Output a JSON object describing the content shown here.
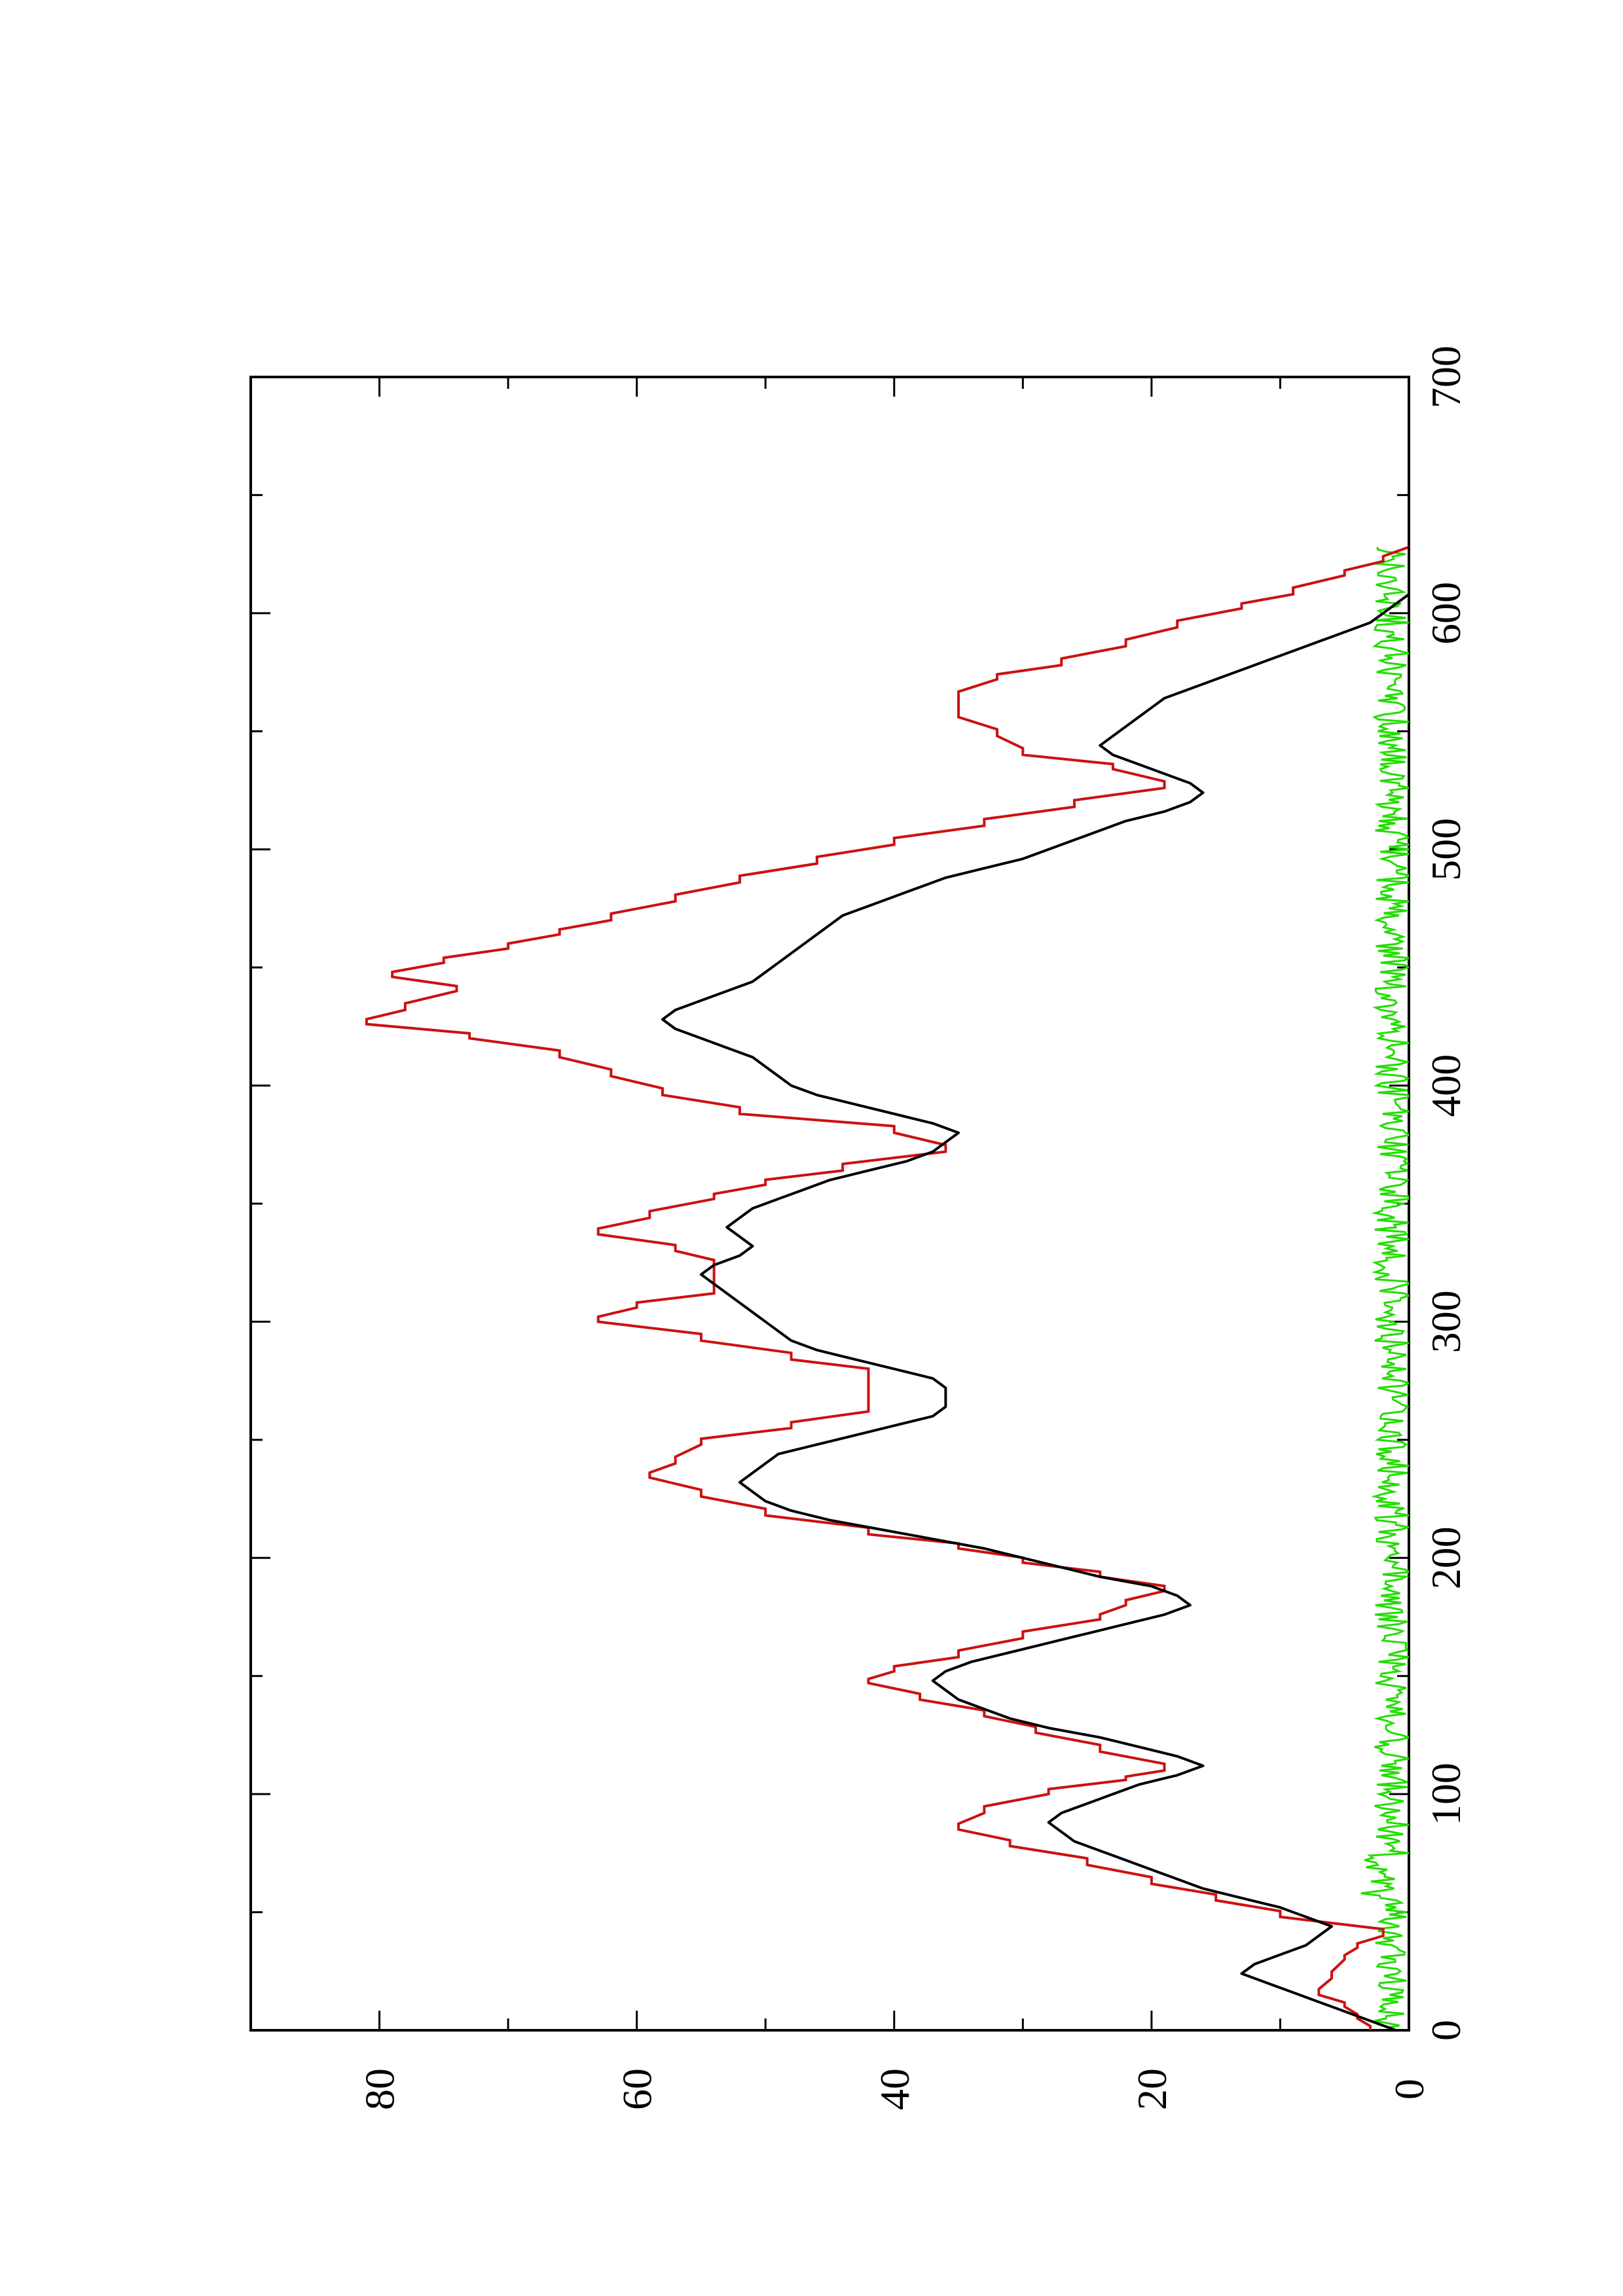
{
  "chart_data": {
    "type": "line",
    "title": "",
    "xlabel": "",
    "ylabel": "",
    "orientation": "rotated-90-counterclockwise",
    "xlim": [
      0,
      700
    ],
    "ylim": [
      0,
      90
    ],
    "x_ticks": [
      0,
      100,
      200,
      300,
      400,
      500,
      600,
      700
    ],
    "x_tick_labels": [
      "0",
      "100",
      "200",
      "300",
      "400",
      "500",
      "600",
      "700"
    ],
    "y_ticks": [
      0,
      20,
      40,
      60,
      80
    ],
    "y_tick_labels": [
      "0",
      "20",
      "40",
      "60",
      "80"
    ],
    "grid": false,
    "legend": "none",
    "series": [
      {
        "color": "#cc1111",
        "style": "step",
        "x": [
          0,
          5,
          10,
          15,
          22,
          30,
          35,
          40,
          48,
          55,
          62,
          70,
          78,
          85,
          92,
          100,
          106,
          110,
          118,
          126,
          133,
          140,
          147,
          152,
          158,
          166,
          174,
          180,
          186,
          192,
          198,
          204,
          210,
          218,
          226,
          234,
          240,
          248,
          255,
          262,
          270,
          278,
          284,
          292,
          300,
          306,
          312,
          318,
          324,
          330,
          337,
          344,
          352,
          358,
          364,
          372,
          380,
          388,
          396,
          404,
          412,
          420,
          426,
          432,
          440,
          446,
          452,
          458,
          464,
          470,
          478,
          486,
          494,
          502,
          510,
          518,
          526,
          534,
          540,
          548,
          556,
          564,
          572,
          578,
          586,
          594,
          602,
          608,
          616,
          622,
          628
        ],
        "y": [
          3,
          4,
          5,
          7,
          6,
          5,
          4,
          2,
          10,
          15,
          20,
          25,
          31,
          35,
          33,
          28,
          22,
          19,
          24,
          29,
          33,
          38,
          42,
          40,
          35,
          30,
          24,
          22,
          19,
          24,
          30,
          35,
          42,
          50,
          55,
          59,
          57,
          55,
          48,
          42,
          42,
          42,
          48,
          55,
          63,
          60,
          54,
          54,
          54,
          57,
          63,
          59,
          54,
          50,
          44,
          36,
          40,
          52,
          58,
          62,
          66,
          73,
          81,
          78,
          74,
          79,
          75,
          70,
          66,
          62,
          57,
          52,
          46,
          40,
          33,
          26,
          19,
          23,
          30,
          32,
          35,
          35,
          32,
          27,
          22,
          18,
          13,
          9,
          5,
          2,
          0
        ]
      },
      {
        "color": "#000000",
        "style": "line",
        "x": [
          0,
          4,
          8,
          12,
          16,
          20,
          24,
          28,
          32,
          36,
          40,
          44,
          48,
          52,
          56,
          60,
          64,
          68,
          72,
          76,
          80,
          84,
          88,
          92,
          96,
          100,
          104,
          108,
          112,
          116,
          120,
          124,
          128,
          132,
          136,
          140,
          144,
          148,
          152,
          156,
          160,
          164,
          168,
          172,
          176,
          180,
          184,
          188,
          192,
          196,
          200,
          204,
          208,
          212,
          216,
          220,
          224,
          228,
          232,
          236,
          240,
          244,
          248,
          252,
          256,
          260,
          264,
          268,
          272,
          276,
          280,
          284,
          288,
          292,
          296,
          300,
          304,
          308,
          312,
          316,
          320,
          324,
          328,
          332,
          336,
          340,
          344,
          348,
          352,
          356,
          360,
          364,
          368,
          372,
          376,
          380,
          384,
          388,
          392,
          396,
          400,
          404,
          408,
          412,
          416,
          420,
          424,
          428,
          432,
          436,
          440,
          444,
          448,
          452,
          456,
          460,
          464,
          468,
          472,
          476,
          480,
          484,
          488,
          492,
          496,
          500,
          504,
          508,
          512,
          516,
          520,
          524,
          528,
          532,
          536,
          540,
          544,
          548,
          552,
          556,
          560,
          564,
          568,
          572,
          576,
          580,
          584,
          588,
          592,
          596,
          600,
          604,
          608,
          612,
          616,
          620,
          624,
          628
        ],
        "y": [
          1,
          3,
          5,
          7,
          9,
          11,
          13,
          12,
          10,
          8,
          7,
          6,
          8,
          10,
          13,
          16,
          18,
          20,
          22,
          24,
          26,
          27,
          28,
          27,
          25,
          23,
          21,
          18,
          16,
          18,
          21,
          24,
          28,
          31,
          33,
          35,
          36,
          37,
          36,
          34,
          31,
          28,
          25,
          22,
          19,
          17,
          18,
          20,
          24,
          27,
          30,
          33,
          37,
          41,
          45,
          48,
          50,
          51,
          52,
          51,
          50,
          49,
          46,
          43,
          40,
          37,
          36,
          36,
          36,
          37,
          40,
          43,
          46,
          48,
          49,
          50,
          51,
          52,
          53,
          54,
          55,
          54,
          52,
          51,
          52,
          53,
          52,
          51,
          49,
          47,
          45,
          42,
          39,
          37,
          36,
          35,
          37,
          40,
          43,
          46,
          48,
          49,
          50,
          51,
          53,
          55,
          57,
          58,
          57,
          55,
          53,
          51,
          50,
          49,
          48,
          47,
          46,
          45,
          44,
          42,
          40,
          38,
          36,
          33,
          30,
          28,
          26,
          24,
          22,
          19,
          17,
          16,
          17,
          19,
          21,
          23,
          24,
          23,
          22,
          21,
          20,
          19,
          17,
          15,
          13,
          11,
          9,
          7,
          5,
          3,
          2,
          1,
          0,
          0,
          0,
          0,
          0,
          0
        ]
      },
      {
        "color": "#22dd00",
        "style": "line",
        "x": "1..628 (noisy series)",
        "y_range": [
          0,
          5
        ],
        "points": 628
      }
    ]
  }
}
